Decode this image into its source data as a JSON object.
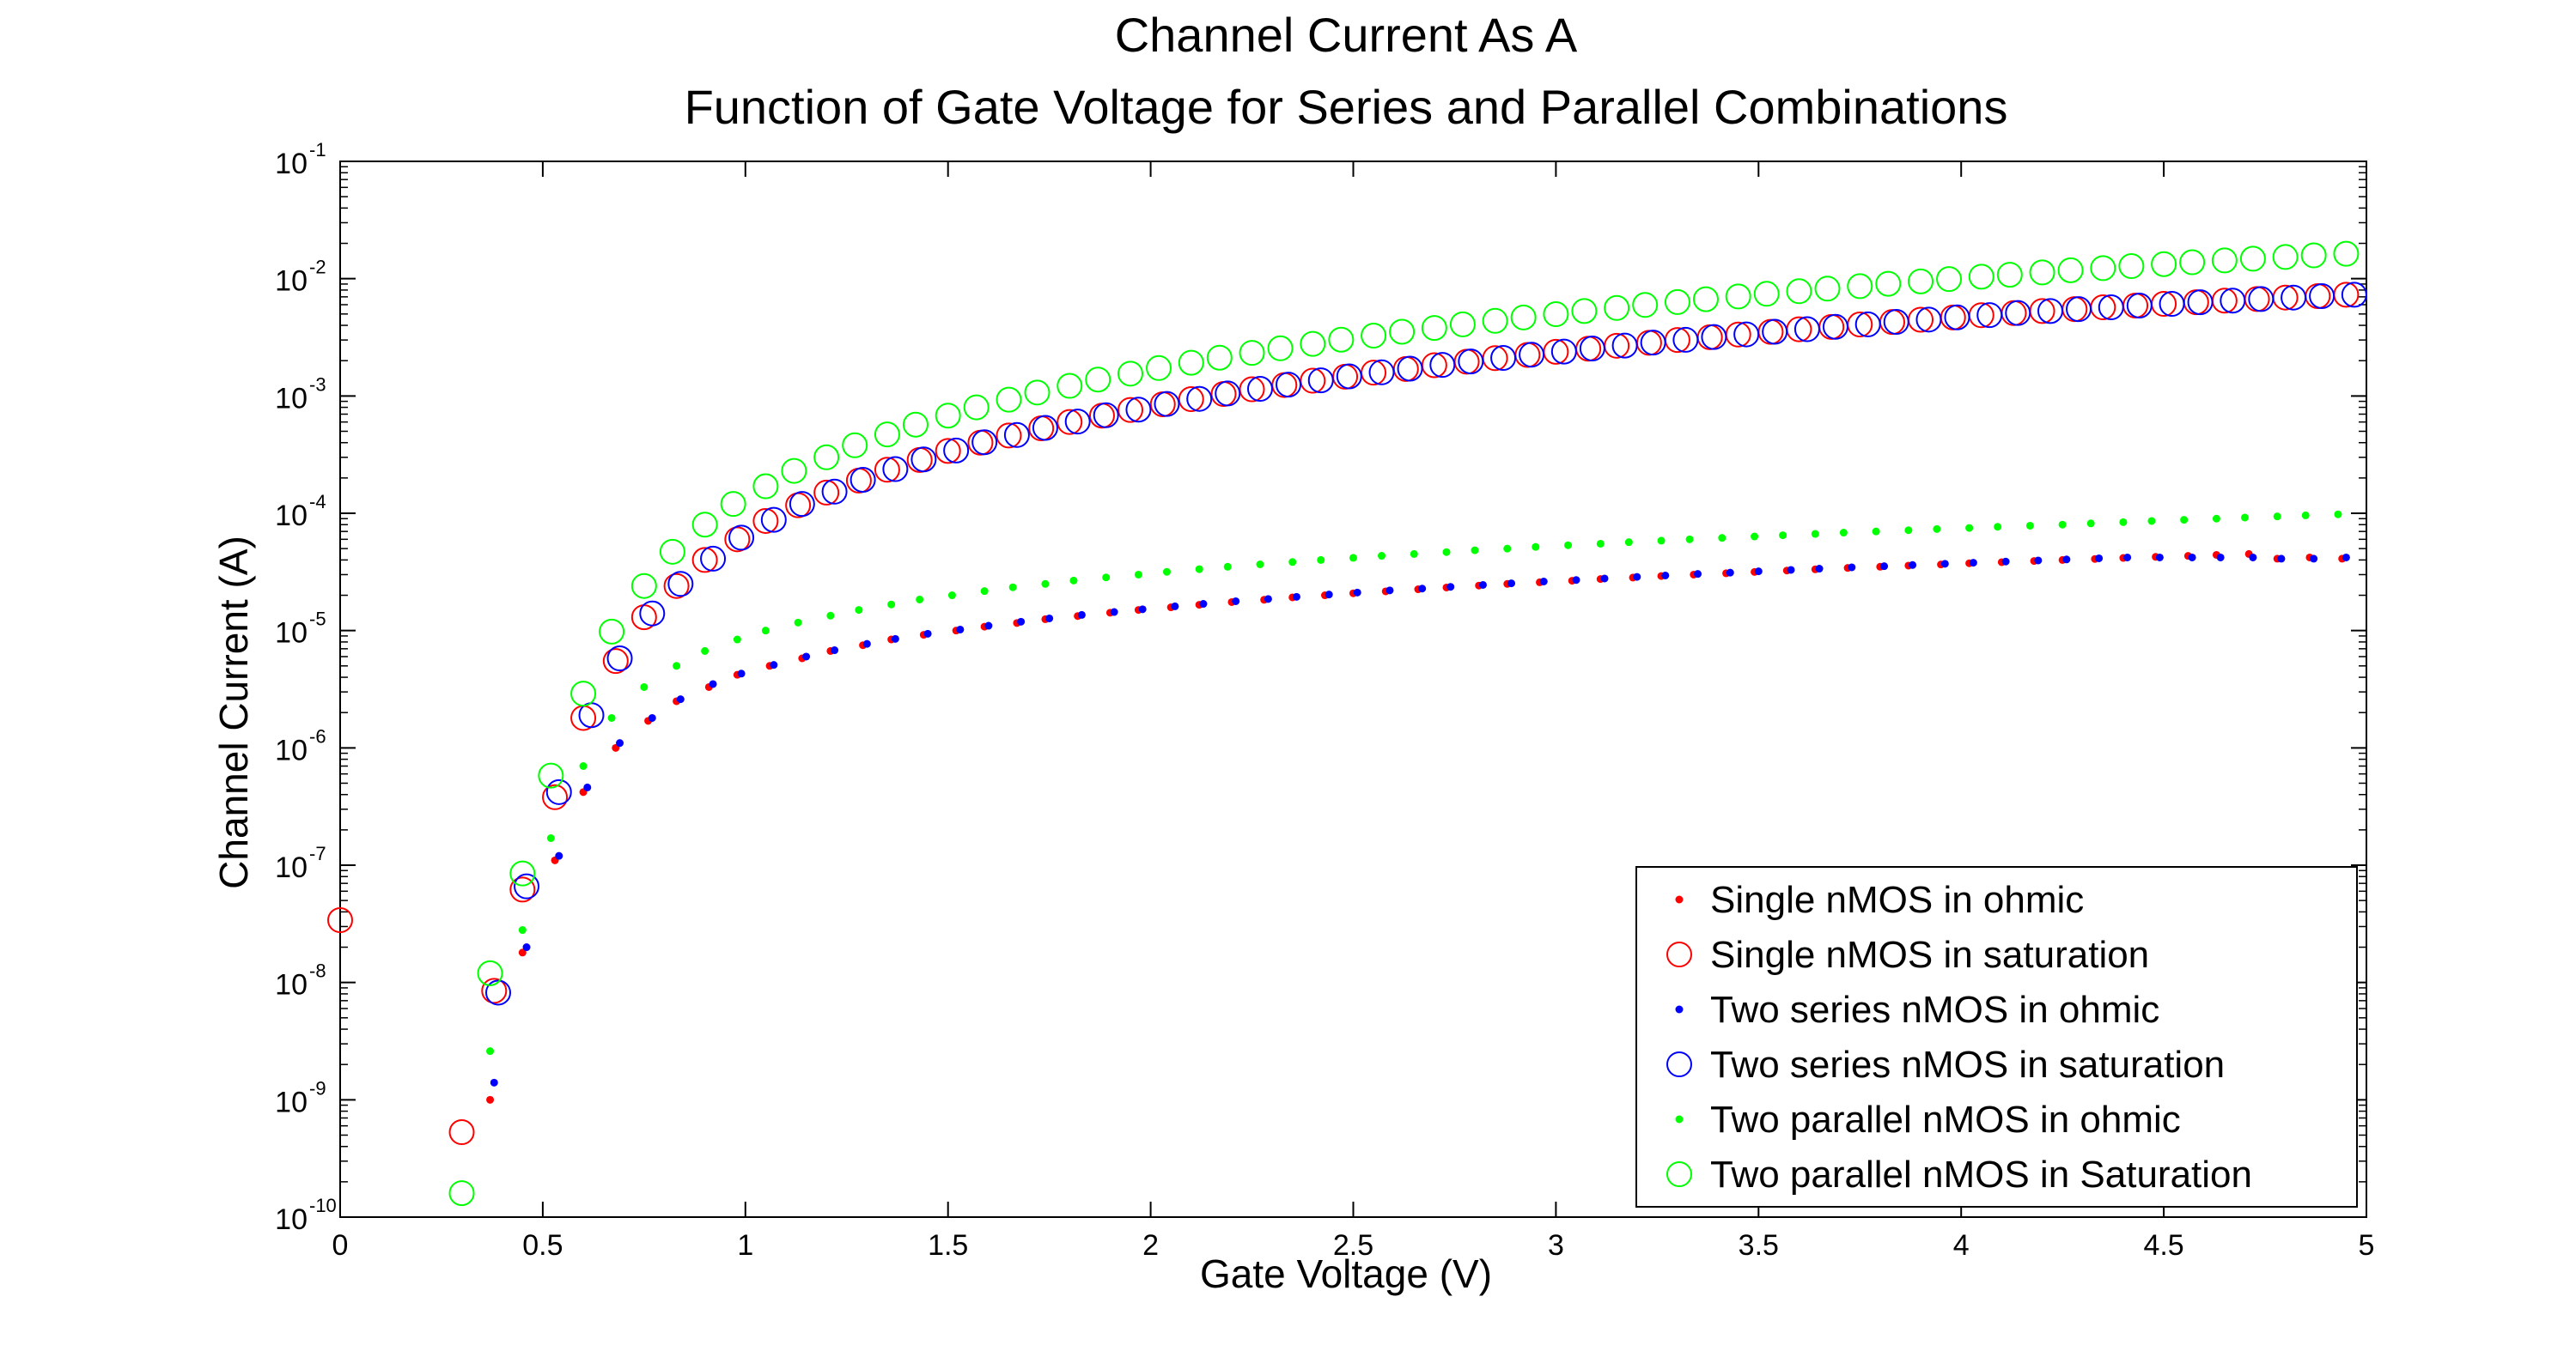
{
  "chart_data": {
    "type": "scatter",
    "title_lines": [
      "Channel Current As A",
      "Function of Gate Voltage for Series and Parallel Combinations"
    ],
    "xlabel": "Gate Voltage (V)",
    "ylabel": "Channel Current (A)",
    "xlim": [
      0,
      5
    ],
    "ylim": [
      1e-10,
      0.1
    ],
    "yscale": "log",
    "grid": false,
    "legend_position": "bottom-right",
    "x_ticks": [
      "0",
      "0.5",
      "1",
      "1.5",
      "2",
      "2.5",
      "3",
      "3.5",
      "4",
      "4.5",
      "5"
    ],
    "y_ticks": [
      {
        "base": "10",
        "exp": "-10"
      },
      {
        "base": "10",
        "exp": "-9"
      },
      {
        "base": "10",
        "exp": "-8"
      },
      {
        "base": "10",
        "exp": "-7"
      },
      {
        "base": "10",
        "exp": "-6"
      },
      {
        "base": "10",
        "exp": "-5"
      },
      {
        "base": "10",
        "exp": "-4"
      },
      {
        "base": "10",
        "exp": "-3"
      },
      {
        "base": "10",
        "exp": "-2"
      },
      {
        "base": "10",
        "exp": "-1"
      }
    ],
    "series": [
      {
        "name": "Single nMOS in ohmic",
        "marker": "dot",
        "color": "#ff0000",
        "x": [
          0.37,
          0.45,
          0.53,
          0.6,
          0.68,
          0.76,
          0.83,
          0.91,
          0.98,
          1.06,
          1.14,
          1.21,
          1.29,
          1.36,
          1.44,
          1.52,
          1.59,
          1.67,
          1.74,
          1.82,
          1.9,
          1.97,
          2.05,
          2.12,
          2.2,
          2.28,
          2.35,
          2.43,
          2.5,
          2.58,
          2.66,
          2.73,
          2.81,
          2.88,
          2.96,
          3.04,
          3.11,
          3.19,
          3.26,
          3.34,
          3.42,
          3.49,
          3.57,
          3.64,
          3.72,
          3.8,
          3.87,
          3.95,
          4.02,
          4.1,
          4.18,
          4.25,
          4.33,
          4.4,
          4.48,
          4.56,
          4.63,
          4.71,
          4.78,
          4.86,
          4.94
        ],
        "y": [
          1e-09,
          1.8e-08,
          1.1e-07,
          4.2e-07,
          1e-06,
          1.7e-06,
          2.5e-06,
          3.3e-06,
          4.2e-06,
          5e-06,
          5.8e-06,
          6.7e-06,
          7.5e-06,
          8.4e-06,
          9.2e-06,
          1e-05,
          1.08e-05,
          1.16e-05,
          1.25e-05,
          1.33e-05,
          1.42e-05,
          1.5e-05,
          1.58e-05,
          1.66e-05,
          1.75e-05,
          1.83e-05,
          1.92e-05,
          2e-05,
          2.08e-05,
          2.16e-05,
          2.25e-05,
          2.33e-05,
          2.42e-05,
          2.5e-05,
          2.58e-05,
          2.66e-05,
          2.75e-05,
          2.83e-05,
          2.92e-05,
          3e-05,
          3.08e-05,
          3.16e-05,
          3.25e-05,
          3.33e-05,
          3.42e-05,
          3.5e-05,
          3.58e-05,
          3.66e-05,
          3.75e-05,
          3.83e-05,
          3.92e-05,
          4e-05,
          4.08e-05,
          4.16e-05,
          4.25e-05,
          4.33e-05,
          4.42e-05,
          4.5e-05,
          4.1e-05,
          4.2e-05,
          4.1e-05
        ]
      },
      {
        "name": "Single nMOS in saturation",
        "marker": "circle",
        "color": "#ff0000",
        "x": [
          0,
          0.3,
          0.38,
          0.45,
          0.53,
          0.6,
          0.68,
          0.75,
          0.83,
          0.9,
          0.98,
          1.05,
          1.13,
          1.2,
          1.28,
          1.35,
          1.43,
          1.5,
          1.58,
          1.65,
          1.73,
          1.8,
          1.88,
          1.95,
          2.03,
          2.1,
          2.18,
          2.25,
          2.33,
          2.4,
          2.48,
          2.55,
          2.63,
          2.7,
          2.78,
          2.85,
          2.93,
          3,
          3.08,
          3.15,
          3.23,
          3.3,
          3.38,
          3.45,
          3.53,
          3.6,
          3.68,
          3.75,
          3.83,
          3.9,
          3.98,
          4.05,
          4.13,
          4.2,
          4.28,
          4.35,
          4.43,
          4.5,
          4.58,
          4.65,
          4.73,
          4.8,
          4.88,
          4.95
        ],
        "y": [
          3.4e-08,
          5.3e-10,
          8.5e-09,
          6.2e-08,
          3.8e-07,
          1.8e-06,
          5.5e-06,
          1.3e-05,
          2.4e-05,
          4e-05,
          6e-05,
          8.6e-05,
          0.000117,
          0.00015,
          0.00019,
          0.000235,
          0.000285,
          0.00034,
          0.0004,
          0.00046,
          0.00053,
          0.0006,
          0.00068,
          0.00076,
          0.00085,
          0.00094,
          0.00104,
          0.00114,
          0.00124,
          0.00135,
          0.00146,
          0.00158,
          0.0017,
          0.00183,
          0.00196,
          0.0021,
          0.00224,
          0.00238,
          0.00253,
          0.00268,
          0.00284,
          0.003,
          0.00317,
          0.00334,
          0.00352,
          0.0037,
          0.00388,
          0.00407,
          0.00427,
          0.00447,
          0.00467,
          0.00488,
          0.00509,
          0.0053,
          0.0055,
          0.0057,
          0.0059,
          0.0061,
          0.0063,
          0.0065,
          0.0067,
          0.0069,
          0.0071,
          0.0073
        ]
      },
      {
        "name": "Two series nMOS in ohmic",
        "marker": "dot",
        "color": "#0000ff",
        "x": [
          0.38,
          0.46,
          0.54,
          0.61,
          0.69,
          0.77,
          0.84,
          0.92,
          0.99,
          1.07,
          1.15,
          1.22,
          1.3,
          1.37,
          1.45,
          1.53,
          1.6,
          1.68,
          1.75,
          1.83,
          1.91,
          1.98,
          2.06,
          2.13,
          2.21,
          2.29,
          2.36,
          2.44,
          2.51,
          2.59,
          2.67,
          2.74,
          2.82,
          2.89,
          2.97,
          3.05,
          3.12,
          3.2,
          3.27,
          3.35,
          3.43,
          3.5,
          3.58,
          3.65,
          3.73,
          3.81,
          3.88,
          3.96,
          4.03,
          4.11,
          4.19,
          4.26,
          4.34,
          4.41,
          4.49,
          4.57,
          4.64,
          4.72,
          4.79,
          4.87,
          4.95
        ],
        "y": [
          1.4e-09,
          2e-08,
          1.2e-07,
          4.6e-07,
          1.1e-06,
          1.8e-06,
          2.6e-06,
          3.5e-06,
          4.3e-06,
          5.1e-06,
          6e-06,
          6.8e-06,
          7.7e-06,
          8.5e-06,
          9.4e-06,
          1.02e-05,
          1.1e-05,
          1.19e-05,
          1.27e-05,
          1.36e-05,
          1.44e-05,
          1.52e-05,
          1.61e-05,
          1.69e-05,
          1.78e-05,
          1.86e-05,
          1.94e-05,
          2.03e-05,
          2.11e-05,
          2.2e-05,
          2.28e-05,
          2.36e-05,
          2.45e-05,
          2.53e-05,
          2.62e-05,
          2.7e-05,
          2.78e-05,
          2.87e-05,
          2.95e-05,
          3.04e-05,
          3.12e-05,
          3.2e-05,
          3.29e-05,
          3.37e-05,
          3.46e-05,
          3.54e-05,
          3.62e-05,
          3.71e-05,
          3.79e-05,
          3.88e-05,
          3.96e-05,
          4.04e-05,
          4.13e-05,
          4.2e-05,
          4.2e-05,
          4.2e-05,
          4.2e-05,
          4.2e-05,
          4.1e-05,
          4.1e-05,
          4.2e-05
        ]
      },
      {
        "name": "Two series nMOS in saturation",
        "marker": "circle",
        "color": "#0000ff",
        "x": [
          0.39,
          0.46,
          0.54,
          0.62,
          0.69,
          0.77,
          0.84,
          0.92,
          0.99,
          1.07,
          1.14,
          1.22,
          1.29,
          1.37,
          1.44,
          1.52,
          1.59,
          1.67,
          1.74,
          1.82,
          1.89,
          1.97,
          2.04,
          2.12,
          2.19,
          2.27,
          2.34,
          2.42,
          2.49,
          2.57,
          2.64,
          2.72,
          2.79,
          2.87,
          2.94,
          3.02,
          3.09,
          3.17,
          3.24,
          3.32,
          3.39,
          3.47,
          3.54,
          3.62,
          3.69,
          3.77,
          3.84,
          3.92,
          3.99,
          4.07,
          4.14,
          4.22,
          4.29,
          4.37,
          4.44,
          4.52,
          4.59,
          4.67,
          4.74,
          4.82,
          4.89,
          4.97
        ],
        "y": [
          8.2e-09,
          6.6e-08,
          4.2e-07,
          1.9e-06,
          5.8e-06,
          1.4e-05,
          2.5e-05,
          4.1e-05,
          6.2e-05,
          8.8e-05,
          0.00012,
          0.000153,
          0.000193,
          0.000238,
          0.000288,
          0.000343,
          0.000403,
          0.000465,
          0.000535,
          0.000605,
          0.000685,
          0.000765,
          0.000855,
          0.000945,
          0.00105,
          0.00115,
          0.00125,
          0.00136,
          0.00147,
          0.00159,
          0.00171,
          0.00184,
          0.00197,
          0.00211,
          0.00225,
          0.00239,
          0.00254,
          0.00269,
          0.00285,
          0.00301,
          0.00318,
          0.00335,
          0.00353,
          0.00371,
          0.00389,
          0.00408,
          0.00428,
          0.00448,
          0.00468,
          0.00489,
          0.0051,
          0.0053,
          0.0055,
          0.0057,
          0.0059,
          0.0061,
          0.0063,
          0.0065,
          0.0067,
          0.0069,
          0.0071,
          0.0073
        ]
      },
      {
        "name": "Two parallel nMOS in ohmic",
        "marker": "dot",
        "color": "#00ff00",
        "x": [
          0.37,
          0.45,
          0.52,
          0.6,
          0.67,
          0.75,
          0.83,
          0.9,
          0.98,
          1.05,
          1.13,
          1.21,
          1.28,
          1.36,
          1.43,
          1.51,
          1.59,
          1.66,
          1.74,
          1.81,
          1.89,
          1.97,
          2.04,
          2.12,
          2.19,
          2.27,
          2.35,
          2.42,
          2.5,
          2.57,
          2.65,
          2.73,
          2.8,
          2.88,
          2.95,
          3.03,
          3.11,
          3.18,
          3.26,
          3.33,
          3.41,
          3.49,
          3.56,
          3.64,
          3.71,
          3.79,
          3.87,
          3.94,
          4.02,
          4.09,
          4.17,
          4.25,
          4.32,
          4.4,
          4.47,
          4.55,
          4.63,
          4.7,
          4.78,
          4.85,
          4.93
        ],
        "y": [
          2.6e-09,
          2.8e-08,
          1.7e-07,
          7e-07,
          1.8e-06,
          3.3e-06,
          5e-06,
          6.7e-06,
          8.4e-06,
          1e-05,
          1.17e-05,
          1.34e-05,
          1.5e-05,
          1.67e-05,
          1.84e-05,
          2e-05,
          2.17e-05,
          2.34e-05,
          2.5e-05,
          2.67e-05,
          2.84e-05,
          3e-05,
          3.17e-05,
          3.34e-05,
          3.5e-05,
          3.67e-05,
          3.84e-05,
          4e-05,
          4.17e-05,
          4.34e-05,
          4.5e-05,
          4.67e-05,
          4.84e-05,
          5e-05,
          5.17e-05,
          5.34e-05,
          5.5e-05,
          5.67e-05,
          5.84e-05,
          6e-05,
          6.17e-05,
          6.34e-05,
          6.5e-05,
          6.67e-05,
          6.84e-05,
          7e-05,
          7.17e-05,
          7.34e-05,
          7.5e-05,
          7.67e-05,
          7.84e-05,
          8e-05,
          8.2e-05,
          8.4e-05,
          8.6e-05,
          8.8e-05,
          9e-05,
          9.2e-05,
          9.4e-05,
          9.6e-05,
          9.8e-05
        ]
      },
      {
        "name": "Two parallel nMOS in Saturation",
        "marker": "circle",
        "color": "#00ff00",
        "x": [
          0.3,
          0.37,
          0.45,
          0.52,
          0.6,
          0.67,
          0.75,
          0.82,
          0.9,
          0.97,
          1.05,
          1.12,
          1.2,
          1.27,
          1.35,
          1.42,
          1.5,
          1.57,
          1.65,
          1.72,
          1.8,
          1.87,
          1.95,
          2.02,
          2.1,
          2.17,
          2.25,
          2.32,
          2.4,
          2.47,
          2.55,
          2.62,
          2.7,
          2.77,
          2.85,
          2.92,
          3,
          3.07,
          3.15,
          3.22,
          3.3,
          3.37,
          3.45,
          3.52,
          3.6,
          3.67,
          3.75,
          3.82,
          3.9,
          3.97,
          4.05,
          4.12,
          4.2,
          4.27,
          4.35,
          4.42,
          4.5,
          4.57,
          4.65,
          4.72,
          4.8,
          4.87,
          4.95
        ],
        "y": [
          1.6e-10,
          1.2e-08,
          8.5e-08,
          5.8e-07,
          2.9e-06,
          9.8e-06,
          2.4e-05,
          4.7e-05,
          8e-05,
          0.00012,
          0.00017,
          0.00023,
          0.0003,
          0.00038,
          0.00047,
          0.00057,
          0.00068,
          0.0008,
          0.00093,
          0.00107,
          0.00122,
          0.00138,
          0.00155,
          0.00173,
          0.00192,
          0.00212,
          0.00233,
          0.00255,
          0.00278,
          0.00302,
          0.00327,
          0.00353,
          0.0038,
          0.00408,
          0.00437,
          0.00467,
          0.00498,
          0.0053,
          0.00563,
          0.00597,
          0.00632,
          0.00668,
          0.00705,
          0.00743,
          0.00782,
          0.00822,
          0.00863,
          0.00905,
          0.00948,
          0.00992,
          0.0104,
          0.0108,
          0.0113,
          0.0118,
          0.0123,
          0.0128,
          0.0133,
          0.0138,
          0.0143,
          0.0148,
          0.0153,
          0.0158,
          0.0163
        ]
      }
    ]
  }
}
